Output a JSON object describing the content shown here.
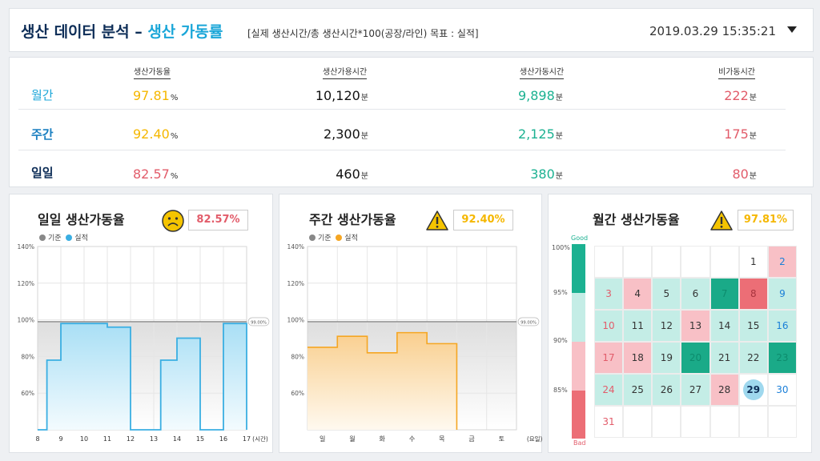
{
  "header": {
    "title_main": "생산 데이터 분석 – ",
    "title_hl": "생산 가동률",
    "subtitle": "[실제 생산시간/총 생산시간*100(공장/라인) 목표 : 실적]",
    "datetime": "2019.03.29 15:35:21"
  },
  "summary": {
    "headers": [
      "생산가동율",
      "생산가용시간",
      "생산가동시간",
      "비가동시간"
    ],
    "rows": [
      {
        "label": "월간",
        "rate": "97.81",
        "avail": "10,120",
        "run": "9,898",
        "down": "222"
      },
      {
        "label": "주간",
        "rate": "92.40",
        "avail": "2,300",
        "run": "2,125",
        "down": "175"
      },
      {
        "label": "일일",
        "rate": "82.57",
        "avail": "460",
        "run": "380",
        "down": "80"
      }
    ],
    "pct_unit": "%",
    "min_unit": "분"
  },
  "colors": {
    "navy": "#0d2d57",
    "cyan": "#1aa6d8",
    "yellow": "#f5b700",
    "red": "#e25c6a",
    "green": "#1bb191",
    "pink": "#f8c0c6",
    "mint": "#c4ede6",
    "darkgreen": "#1aaa88",
    "darkred": "#ec6e76"
  },
  "daily": {
    "title": "일일 생산가동율",
    "badge": "82.57%",
    "icon": "sad-face-icon",
    "legend": [
      "기준",
      "실적"
    ],
    "chart_data": {
      "type": "area",
      "x": [
        "8",
        "9",
        "10",
        "11",
        "12",
        "13",
        "14",
        "15",
        "16",
        "17"
      ],
      "xunit": "(시간)",
      "baseline": 99,
      "baseline_label": "99.00%",
      "ylim": [
        40,
        140
      ],
      "yticks": [
        "140%",
        "120%",
        "100%",
        "80%",
        "60%"
      ],
      "steps": [
        [
          8,
          40
        ],
        [
          8.4,
          78
        ],
        [
          9,
          98
        ],
        [
          10,
          98
        ],
        [
          11,
          96
        ],
        [
          12,
          40
        ],
        [
          13.3,
          78
        ],
        [
          14,
          90
        ],
        [
          15,
          90
        ],
        [
          15,
          40
        ],
        [
          16,
          40
        ],
        [
          16,
          98
        ],
        [
          17,
          98
        ]
      ]
    }
  },
  "weekly": {
    "title": "주간 생산가동율",
    "badge": "92.40%",
    "icon": "warning-icon",
    "legend": [
      "기준",
      "실적"
    ],
    "chart_data": {
      "type": "area",
      "x": [
        "일",
        "월",
        "화",
        "수",
        "목",
        "금",
        "토"
      ],
      "xunit": "(요일)",
      "baseline": 99,
      "baseline_label": "99.00%",
      "ylim": [
        40,
        140
      ],
      "yticks": [
        "140%",
        "120%",
        "100%",
        "80%",
        "60%"
      ],
      "steps": [
        [
          0,
          85
        ],
        [
          1,
          91
        ],
        [
          2,
          82
        ],
        [
          3,
          93
        ],
        [
          4,
          87
        ]
      ]
    }
  },
  "monthly": {
    "title": "월간 생산가동율",
    "badge": "97.81%",
    "icon": "warning-icon",
    "good": "Good",
    "bad": "Bad",
    "yticks": [
      "100%",
      "95%",
      "90%",
      "85%"
    ],
    "weeks": [
      [
        [
          "",
          ""
        ],
        [
          "",
          ""
        ],
        [
          "",
          ""
        ],
        [
          "",
          ""
        ],
        [
          "",
          ""
        ],
        [
          "1",
          "n"
        ],
        [
          "2",
          "p"
        ]
      ],
      [
        [
          "3",
          "m"
        ],
        [
          "4",
          "p"
        ],
        [
          "5",
          "m"
        ],
        [
          "6",
          "m"
        ],
        [
          "7",
          "g"
        ],
        [
          "8",
          "r"
        ],
        [
          "9",
          "m"
        ]
      ],
      [
        [
          "10",
          "m"
        ],
        [
          "11",
          "m"
        ],
        [
          "12",
          "m"
        ],
        [
          "13",
          "p"
        ],
        [
          "14",
          "m"
        ],
        [
          "15",
          "m"
        ],
        [
          "16",
          "m"
        ]
      ],
      [
        [
          "17",
          "p"
        ],
        [
          "18",
          "p"
        ],
        [
          "19",
          "m"
        ],
        [
          "20",
          "g"
        ],
        [
          "21",
          "m"
        ],
        [
          "22",
          "m"
        ],
        [
          "23",
          "g"
        ]
      ],
      [
        [
          "24",
          "m"
        ],
        [
          "25",
          "m"
        ],
        [
          "26",
          "m"
        ],
        [
          "27",
          "m"
        ],
        [
          "28",
          "p"
        ],
        [
          "29",
          "t"
        ],
        [
          "30",
          "n"
        ]
      ],
      [
        [
          "31",
          "n"
        ],
        [
          "",
          ""
        ],
        [
          "",
          ""
        ],
        [
          "",
          ""
        ],
        [
          "",
          ""
        ],
        [
          "",
          ""
        ],
        [
          "",
          ""
        ]
      ]
    ]
  }
}
